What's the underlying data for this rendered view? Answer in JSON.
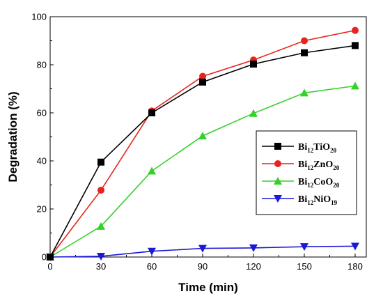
{
  "chart_data": {
    "type": "line",
    "xlabel": "Time (min)",
    "ylabel": "Degradation (%)",
    "xlim": [
      0,
      180
    ],
    "ylim": [
      0,
      100
    ],
    "xticks": [
      0,
      30,
      60,
      90,
      120,
      150,
      180
    ],
    "yticks": [
      0,
      20,
      40,
      60,
      80,
      100
    ],
    "grid": false,
    "legend_position": "right",
    "x": [
      0,
      30,
      60,
      90,
      120,
      150,
      180
    ],
    "series": [
      {
        "name": "Bi12TiO20",
        "label_base": "Bi",
        "label_parts": [
          [
            "Bi",
            ""
          ],
          [
            "12",
            "sub"
          ],
          [
            "TiO",
            ""
          ],
          [
            "20",
            "sub"
          ]
        ],
        "color": "#000000",
        "marker": "square",
        "values": [
          0,
          39.5,
          60,
          72.8,
          80.3,
          85,
          88
        ]
      },
      {
        "name": "Bi12ZnO20",
        "label_parts": [
          [
            "Bi",
            ""
          ],
          [
            "12",
            "sub"
          ],
          [
            "ZnO",
            ""
          ],
          [
            "20",
            "sub"
          ]
        ],
        "color": "#e8231e",
        "marker": "circle",
        "values": [
          0,
          27.8,
          60.8,
          75.2,
          82,
          90,
          94.3
        ]
      },
      {
        "name": "Bi12CoO20",
        "label_parts": [
          [
            "Bi",
            ""
          ],
          [
            "12",
            "sub"
          ],
          [
            "CoO",
            ""
          ],
          [
            "20",
            "sub"
          ]
        ],
        "color": "#35d12a",
        "marker": "triangle-up",
        "values": [
          0,
          12.8,
          35.8,
          50.4,
          59.8,
          68.3,
          71.2
        ]
      },
      {
        "name": "Bi12NiO19",
        "label_parts": [
          [
            "Bi",
            ""
          ],
          [
            "12",
            "sub"
          ],
          [
            "NiO",
            ""
          ],
          [
            "19",
            "sub"
          ]
        ],
        "color": "#1a1ad6",
        "marker": "triangle-down",
        "values": [
          0,
          0.3,
          2.4,
          3.6,
          3.8,
          4.3,
          4.5
        ]
      }
    ]
  }
}
